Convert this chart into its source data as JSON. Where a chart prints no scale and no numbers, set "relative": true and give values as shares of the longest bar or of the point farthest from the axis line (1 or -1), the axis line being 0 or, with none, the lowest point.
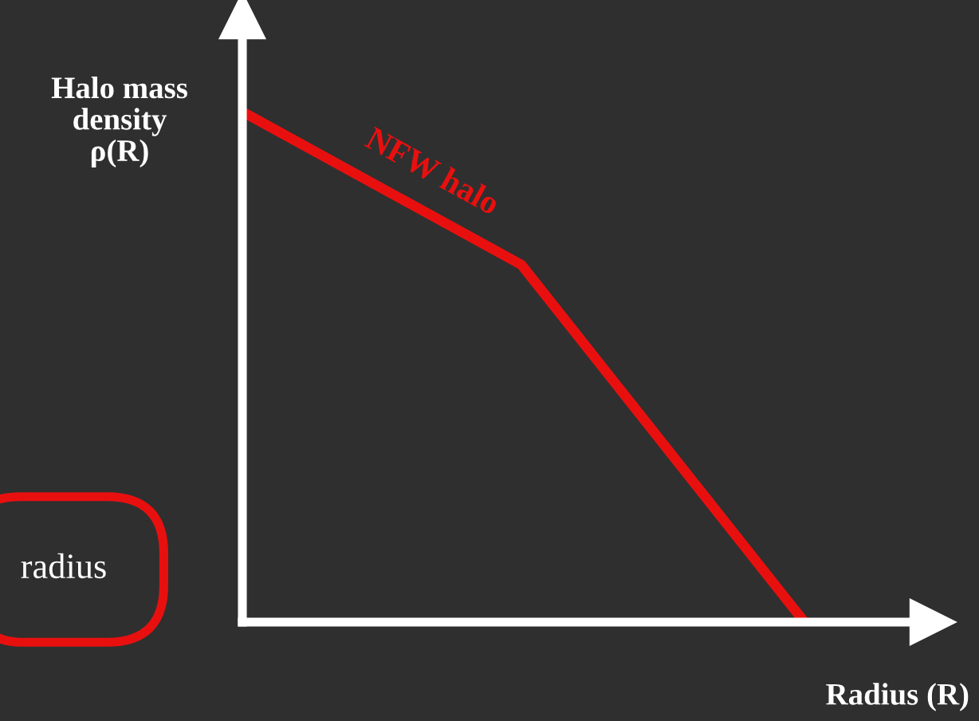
{
  "chart_data": {
    "type": "line",
    "relative": true,
    "ylabel": "Halo mass\ndensity\nρ(R)",
    "xlabel": "Radius (R)",
    "categories": [
      null,
      null,
      null
    ],
    "series": [
      {
        "name": "NFW halo",
        "color": "#e8100f",
        "values": [
          1,
          0.7,
          0.01
        ]
      }
    ],
    "annotations": [
      "radius"
    ],
    "grid": false,
    "legend": false,
    "marker": "none",
    "line_style": "solid"
  }
}
